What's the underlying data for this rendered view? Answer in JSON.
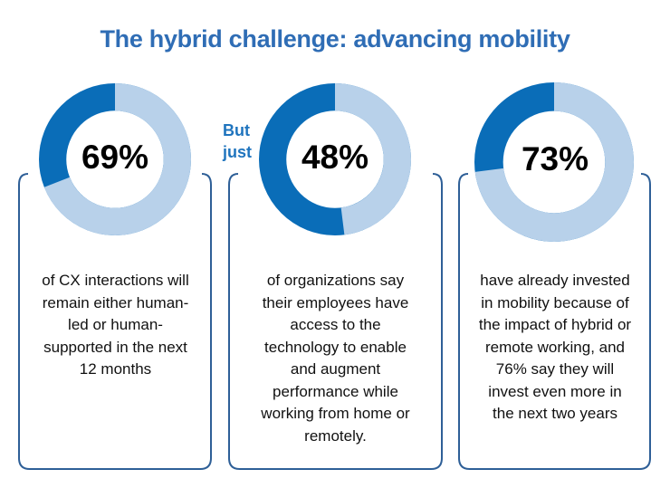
{
  "title": "The hybrid challenge: advancing mobility",
  "colors": {
    "value": "#b8d1ea",
    "remainder": "#0a6db8",
    "title": "#2f6db5",
    "frame": "#2e5f97"
  },
  "chart_data": [
    {
      "type": "pie",
      "style": "donut",
      "value": 69,
      "label": "69%",
      "description": "of CX interactions will remain either human-led or human-supported in the next 12 months"
    },
    {
      "type": "pie",
      "style": "donut",
      "value": 48,
      "label": "48%",
      "prefix": "But just",
      "description": "of organizations say their employees have access to the technology to enable and augment performance while working from home or remotely."
    },
    {
      "type": "pie",
      "style": "donut",
      "value": 73,
      "label": "73%",
      "description": "have already invested in mobility because of the impact of hybrid or remote working, and 76% say they will invest even more in the next two years"
    }
  ]
}
